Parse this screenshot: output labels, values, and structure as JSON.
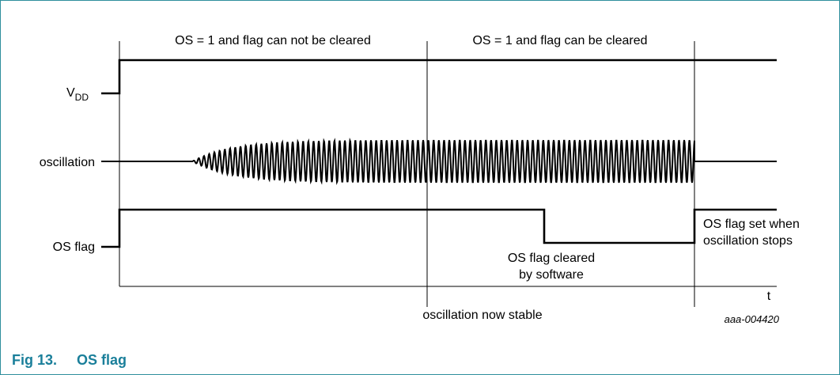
{
  "diagram": {
    "phase_labels": {
      "not_cleared": "OS = 1 and flag can not be cleared",
      "can_clear": "OS = 1 and flag can be cleared"
    },
    "signal_labels": {
      "vdd_main": "V",
      "vdd_sub": "DD",
      "oscillation": "oscillation",
      "os_flag": "OS flag"
    },
    "annotations": {
      "cleared_line1": "OS flag cleared",
      "cleared_line2": "by software",
      "set_line1": "OS flag set when",
      "set_line2": "oscillation stops",
      "stable": "oscillation now stable",
      "time_axis": "t"
    },
    "figure_code": "aaa-004420"
  },
  "caption": {
    "number": "Fig 13.",
    "title": "OS flag"
  }
}
